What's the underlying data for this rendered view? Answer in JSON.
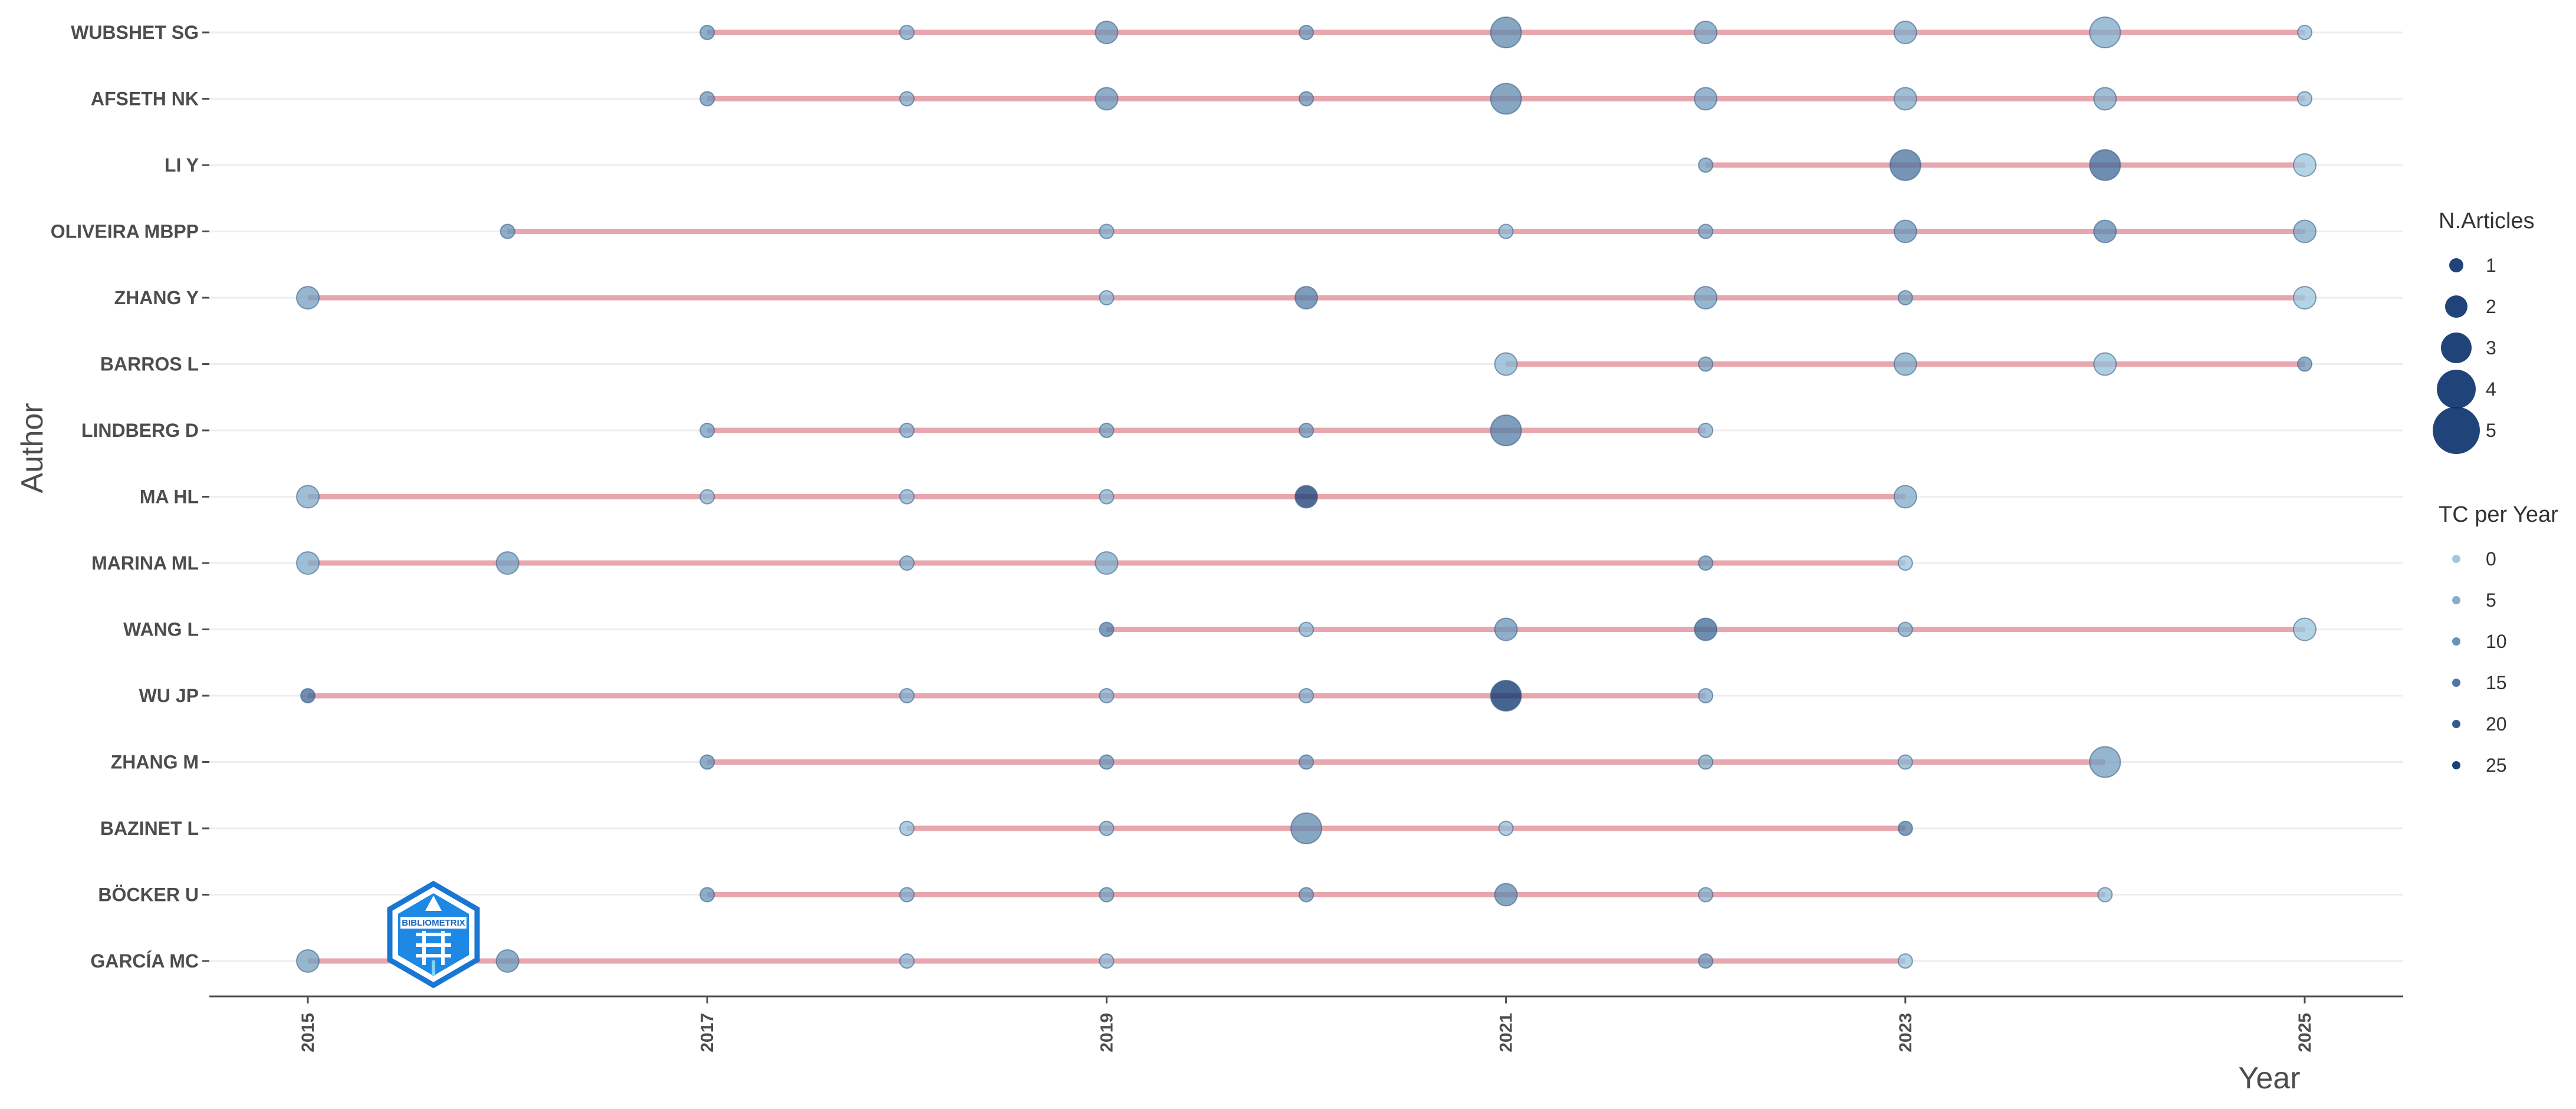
{
  "chart_data": {
    "type": "scatter",
    "subtype": "timeline-bubble",
    "title": "",
    "xlabel": "Year",
    "ylabel": "Author",
    "xlim": [
      2014.75,
      2025.25
    ],
    "x_ticks": [
      2015,
      2017,
      2019,
      2021,
      2023,
      2025
    ],
    "grid": "horizontal",
    "legend_position": "right",
    "colors": {
      "segment": "#E8A6AE",
      "point_dark": "#08306B",
      "point_light": "#9ECAE1",
      "axis": "#4d4d4d",
      "grid": "#eeeeee"
    },
    "authors": [
      "WUBSHET SG",
      "AFSETH NK",
      "LI Y",
      "OLIVEIRA MBPP",
      "ZHANG Y",
      "BARROS L",
      "LINDBERG D",
      "MA HL",
      "MARINA ML",
      "WANG L",
      "WU JP",
      "ZHANG M",
      "BAZINET L",
      "BÖCKER U",
      "GARCÍA MC"
    ],
    "segments": [
      {
        "author": "WUBSHET SG",
        "start": 2017,
        "end": 2025
      },
      {
        "author": "AFSETH NK",
        "start": 2017,
        "end": 2025
      },
      {
        "author": "LI Y",
        "start": 2022,
        "end": 2025
      },
      {
        "author": "OLIVEIRA MBPP",
        "start": 2016,
        "end": 2025
      },
      {
        "author": "ZHANG Y",
        "start": 2015,
        "end": 2025
      },
      {
        "author": "BARROS L",
        "start": 2021,
        "end": 2025
      },
      {
        "author": "LINDBERG D",
        "start": 2017,
        "end": 2022
      },
      {
        "author": "MA HL",
        "start": 2015,
        "end": 2023
      },
      {
        "author": "MARINA ML",
        "start": 2015,
        "end": 2023
      },
      {
        "author": "WANG L",
        "start": 2019,
        "end": 2025
      },
      {
        "author": "WU JP",
        "start": 2015,
        "end": 2022
      },
      {
        "author": "ZHANG M",
        "start": 2017,
        "end": 2024
      },
      {
        "author": "BAZINET L",
        "start": 2018,
        "end": 2023
      },
      {
        "author": "BÖCKER U",
        "start": 2017,
        "end": 2024
      },
      {
        "author": "GARCÍA MC",
        "start": 2015,
        "end": 2023
      }
    ],
    "points": [
      {
        "author": "WUBSHET SG",
        "year": 2017,
        "articles": 1,
        "tc": 10
      },
      {
        "author": "WUBSHET SG",
        "year": 2018,
        "articles": 1,
        "tc": 6
      },
      {
        "author": "WUBSHET SG",
        "year": 2019,
        "articles": 2,
        "tc": 10
      },
      {
        "author": "WUBSHET SG",
        "year": 2020,
        "articles": 1,
        "tc": 10
      },
      {
        "author": "WUBSHET SG",
        "year": 2021,
        "articles": 3,
        "tc": 12
      },
      {
        "author": "WUBSHET SG",
        "year": 2022,
        "articles": 2,
        "tc": 8
      },
      {
        "author": "WUBSHET SG",
        "year": 2023,
        "articles": 2,
        "tc": 6
      },
      {
        "author": "WUBSHET SG",
        "year": 2024,
        "articles": 3,
        "tc": 6
      },
      {
        "author": "WUBSHET SG",
        "year": 2025,
        "articles": 1,
        "tc": 2
      },
      {
        "author": "AFSETH NK",
        "year": 2017,
        "articles": 1,
        "tc": 10
      },
      {
        "author": "AFSETH NK",
        "year": 2018,
        "articles": 1,
        "tc": 6
      },
      {
        "author": "AFSETH NK",
        "year": 2019,
        "articles": 2,
        "tc": 10
      },
      {
        "author": "AFSETH NK",
        "year": 2020,
        "articles": 1,
        "tc": 10
      },
      {
        "author": "AFSETH NK",
        "year": 2021,
        "articles": 3,
        "tc": 12
      },
      {
        "author": "AFSETH NK",
        "year": 2022,
        "articles": 2,
        "tc": 8
      },
      {
        "author": "AFSETH NK",
        "year": 2023,
        "articles": 2,
        "tc": 6
      },
      {
        "author": "AFSETH NK",
        "year": 2024,
        "articles": 2,
        "tc": 6
      },
      {
        "author": "AFSETH NK",
        "year": 2025,
        "articles": 1,
        "tc": 2
      },
      {
        "author": "LI Y",
        "year": 2022,
        "articles": 1,
        "tc": 8
      },
      {
        "author": "LI Y",
        "year": 2023,
        "articles": 3,
        "tc": 16
      },
      {
        "author": "LI Y",
        "year": 2024,
        "articles": 3,
        "tc": 18
      },
      {
        "author": "LI Y",
        "year": 2025,
        "articles": 2,
        "tc": 1
      },
      {
        "author": "OLIVEIRA MBPP",
        "year": 2016,
        "articles": 1,
        "tc": 10
      },
      {
        "author": "OLIVEIRA MBPP",
        "year": 2019,
        "articles": 1,
        "tc": 6
      },
      {
        "author": "OLIVEIRA MBPP",
        "year": 2021,
        "articles": 1,
        "tc": 4
      },
      {
        "author": "OLIVEIRA MBPP",
        "year": 2022,
        "articles": 1,
        "tc": 8
      },
      {
        "author": "OLIVEIRA MBPP",
        "year": 2023,
        "articles": 2,
        "tc": 10
      },
      {
        "author": "OLIVEIRA MBPP",
        "year": 2024,
        "articles": 2,
        "tc": 12
      },
      {
        "author": "OLIVEIRA MBPP",
        "year": 2025,
        "articles": 2,
        "tc": 6
      },
      {
        "author": "ZHANG Y",
        "year": 2015,
        "articles": 2,
        "tc": 8
      },
      {
        "author": "ZHANG Y",
        "year": 2019,
        "articles": 1,
        "tc": 4
      },
      {
        "author": "ZHANG Y",
        "year": 2020,
        "articles": 2,
        "tc": 14
      },
      {
        "author": "ZHANG Y",
        "year": 2022,
        "articles": 2,
        "tc": 8
      },
      {
        "author": "ZHANG Y",
        "year": 2023,
        "articles": 1,
        "tc": 8
      },
      {
        "author": "ZHANG Y",
        "year": 2025,
        "articles": 2,
        "tc": 1
      },
      {
        "author": "BARROS L",
        "year": 2021,
        "articles": 2,
        "tc": 4
      },
      {
        "author": "BARROS L",
        "year": 2022,
        "articles": 1,
        "tc": 8
      },
      {
        "author": "BARROS L",
        "year": 2023,
        "articles": 2,
        "tc": 6
      },
      {
        "author": "BARROS L",
        "year": 2024,
        "articles": 2,
        "tc": 2
      },
      {
        "author": "BARROS L",
        "year": 2025,
        "articles": 1,
        "tc": 10
      },
      {
        "author": "LINDBERG D",
        "year": 2017,
        "articles": 1,
        "tc": 8
      },
      {
        "author": "LINDBERG D",
        "year": 2018,
        "articles": 1,
        "tc": 6
      },
      {
        "author": "LINDBERG D",
        "year": 2019,
        "articles": 1,
        "tc": 8
      },
      {
        "author": "LINDBERG D",
        "year": 2020,
        "articles": 1,
        "tc": 10
      },
      {
        "author": "LINDBERG D",
        "year": 2021,
        "articles": 3,
        "tc": 14
      },
      {
        "author": "LINDBERG D",
        "year": 2022,
        "articles": 1,
        "tc": 5
      },
      {
        "author": "MA HL",
        "year": 2015,
        "articles": 2,
        "tc": 6
      },
      {
        "author": "MA HL",
        "year": 2017,
        "articles": 1,
        "tc": 4
      },
      {
        "author": "MA HL",
        "year": 2018,
        "articles": 1,
        "tc": 4
      },
      {
        "author": "MA HL",
        "year": 2019,
        "articles": 1,
        "tc": 4
      },
      {
        "author": "MA HL",
        "year": 2020,
        "articles": 2,
        "tc": 26
      },
      {
        "author": "MA HL",
        "year": 2023,
        "articles": 2,
        "tc": 6
      },
      {
        "author": "MARINA ML",
        "year": 2015,
        "articles": 2,
        "tc": 6
      },
      {
        "author": "MARINA ML",
        "year": 2016,
        "articles": 2,
        "tc": 8
      },
      {
        "author": "MARINA ML",
        "year": 2018,
        "articles": 1,
        "tc": 6
      },
      {
        "author": "MARINA ML",
        "year": 2019,
        "articles": 2,
        "tc": 6
      },
      {
        "author": "MARINA ML",
        "year": 2022,
        "articles": 1,
        "tc": 10
      },
      {
        "author": "MARINA ML",
        "year": 2023,
        "articles": 1,
        "tc": 1
      },
      {
        "author": "WANG L",
        "year": 2019,
        "articles": 1,
        "tc": 14
      },
      {
        "author": "WANG L",
        "year": 2020,
        "articles": 1,
        "tc": 4
      },
      {
        "author": "WANG L",
        "year": 2021,
        "articles": 2,
        "tc": 10
      },
      {
        "author": "WANG L",
        "year": 2022,
        "articles": 2,
        "tc": 18
      },
      {
        "author": "WANG L",
        "year": 2023,
        "articles": 1,
        "tc": 6
      },
      {
        "author": "WANG L",
        "year": 2025,
        "articles": 2,
        "tc": 1
      },
      {
        "author": "WU JP",
        "year": 2015,
        "articles": 1,
        "tc": 18
      },
      {
        "author": "WU JP",
        "year": 2018,
        "articles": 1,
        "tc": 6
      },
      {
        "author": "WU JP",
        "year": 2019,
        "articles": 1,
        "tc": 6
      },
      {
        "author": "WU JP",
        "year": 2020,
        "articles": 1,
        "tc": 6
      },
      {
        "author": "WU JP",
        "year": 2021,
        "articles": 3,
        "tc": 28
      },
      {
        "author": "WU JP",
        "year": 2022,
        "articles": 1,
        "tc": 6
      },
      {
        "author": "ZHANG M",
        "year": 2017,
        "articles": 1,
        "tc": 10
      },
      {
        "author": "ZHANG M",
        "year": 2019,
        "articles": 1,
        "tc": 10
      },
      {
        "author": "ZHANG M",
        "year": 2020,
        "articles": 1,
        "tc": 10
      },
      {
        "author": "ZHANG M",
        "year": 2022,
        "articles": 1,
        "tc": 6
      },
      {
        "author": "ZHANG M",
        "year": 2023,
        "articles": 1,
        "tc": 4
      },
      {
        "author": "ZHANG M",
        "year": 2024,
        "articles": 3,
        "tc": 8
      },
      {
        "author": "BAZINET L",
        "year": 2018,
        "articles": 1,
        "tc": 2
      },
      {
        "author": "BAZINET L",
        "year": 2019,
        "articles": 1,
        "tc": 6
      },
      {
        "author": "BAZINET L",
        "year": 2020,
        "articles": 3,
        "tc": 12
      },
      {
        "author": "BAZINET L",
        "year": 2021,
        "articles": 1,
        "tc": 2
      },
      {
        "author": "BAZINET L",
        "year": 2023,
        "articles": 1,
        "tc": 14
      },
      {
        "author": "BÖCKER U",
        "year": 2017,
        "articles": 1,
        "tc": 10
      },
      {
        "author": "BÖCKER U",
        "year": 2018,
        "articles": 1,
        "tc": 6
      },
      {
        "author": "BÖCKER U",
        "year": 2019,
        "articles": 1,
        "tc": 8
      },
      {
        "author": "BÖCKER U",
        "year": 2020,
        "articles": 1,
        "tc": 10
      },
      {
        "author": "BÖCKER U",
        "year": 2021,
        "articles": 2,
        "tc": 12
      },
      {
        "author": "BÖCKER U",
        "year": 2022,
        "articles": 1,
        "tc": 6
      },
      {
        "author": "BÖCKER U",
        "year": 2024,
        "articles": 1,
        "tc": 2
      },
      {
        "author": "GARCÍA MC",
        "year": 2015,
        "articles": 2,
        "tc": 8
      },
      {
        "author": "GARCÍA MC",
        "year": 2016,
        "articles": 2,
        "tc": 10
      },
      {
        "author": "GARCÍA MC",
        "year": 2018,
        "articles": 1,
        "tc": 4
      },
      {
        "author": "GARCÍA MC",
        "year": 2019,
        "articles": 1,
        "tc": 4
      },
      {
        "author": "GARCÍA MC",
        "year": 2022,
        "articles": 1,
        "tc": 10
      },
      {
        "author": "GARCÍA MC",
        "year": 2023,
        "articles": 1,
        "tc": 1
      }
    ],
    "legends": [
      {
        "title": "N.Articles",
        "kind": "size",
        "values": [
          1,
          2,
          3,
          4,
          5
        ],
        "labels": [
          "1",
          "2",
          "3",
          "4",
          "5"
        ]
      },
      {
        "title": "TC per Year",
        "kind": "color",
        "values": [
          0,
          5,
          10,
          15,
          20,
          25
        ],
        "labels": [
          "0",
          "5",
          "10",
          "15",
          "20",
          "25"
        ]
      }
    ]
  },
  "logo": {
    "icon": "bibliometrix-logo-icon",
    "text": "BIBLIOMETRIX"
  }
}
